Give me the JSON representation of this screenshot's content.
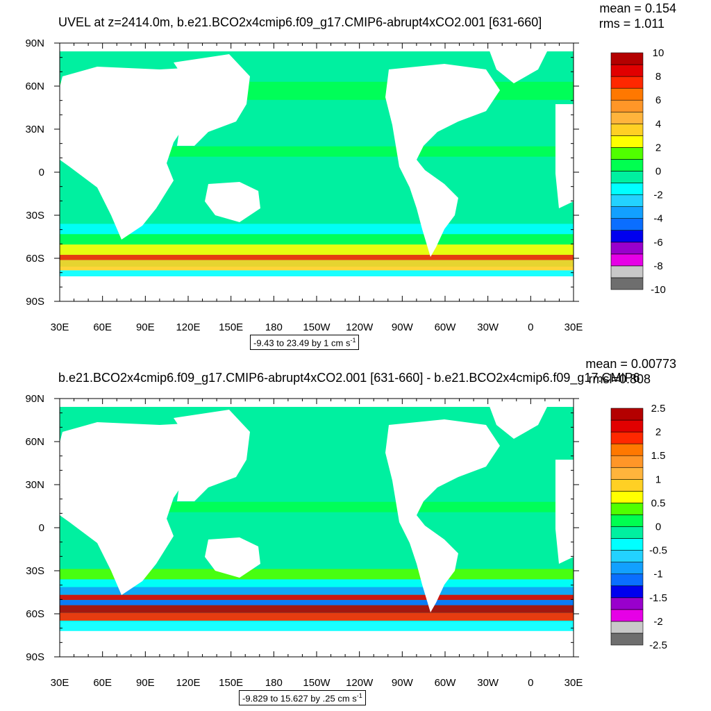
{
  "chart_data": [
    {
      "type": "heatmap",
      "title": "UVEL at z=2414.0m, b.e21.BCO2x4cmip6.f09_g17.CMIP6-abrupt4xCO2.001 [631-660]",
      "stats": {
        "mean": "mean = 0.154",
        "rms": "rms = 1.011"
      },
      "x_ticks": [
        "30E",
        "60E",
        "90E",
        "120E",
        "150E",
        "180",
        "150W",
        "120W",
        "90W",
        "60W",
        "30W",
        "0",
        "30E"
      ],
      "y_ticks": [
        "90N",
        "60N",
        "30N",
        "0",
        "30S",
        "60S",
        "90S"
      ],
      "colorbar_labels": [
        "10",
        "8",
        "6",
        "4",
        "2",
        "0",
        "-2",
        "-4",
        "-6",
        "-8",
        "-10"
      ],
      "range_text": "-9.43 to 23.49 by 1 cm s",
      "range_unit_sup": "-1"
    },
    {
      "type": "heatmap",
      "title": "b.e21.BCO2x4cmip6.f09_g17.CMIP6-abrupt4xCO2.001 [631-660] - b.e21.BCO2x4cmip6.f09_g17.CMIP6",
      "stats": {
        "mean": "mean = 0.00773",
        "rms": "rmsl=0.808"
      },
      "x_ticks": [
        "30E",
        "60E",
        "90E",
        "120E",
        "150E",
        "180",
        "150W",
        "120W",
        "90W",
        "60W",
        "30W",
        "0",
        "30E"
      ],
      "y_ticks": [
        "90N",
        "60N",
        "30N",
        "0",
        "30S",
        "60S",
        "90S"
      ],
      "colorbar_labels": [
        "2.5",
        "2",
        "1.5",
        "1",
        "0.5",
        "0",
        "-0.5",
        "-1",
        "-1.5",
        "-2",
        "-2.5"
      ],
      "range_text": "-9.829 to 15.627 by .25 cm s",
      "range_unit_sup": "-1"
    }
  ],
  "colors": {
    "palette": [
      "#6e6e6e",
      "#c8c8c8",
      "#e600e6",
      "#9900cc",
      "#0000ee",
      "#0a6eff",
      "#12a0ff",
      "#23d2ff",
      "#00ffff",
      "#00f0a0",
      "#00ff50",
      "#50ff00",
      "#ffff00",
      "#ffd024",
      "#ffb43c",
      "#ff9628",
      "#ff7800",
      "#ff2800",
      "#e10000",
      "#b40000"
    ],
    "ocean_base": "#00f0a0",
    "land": "#ffffff"
  }
}
